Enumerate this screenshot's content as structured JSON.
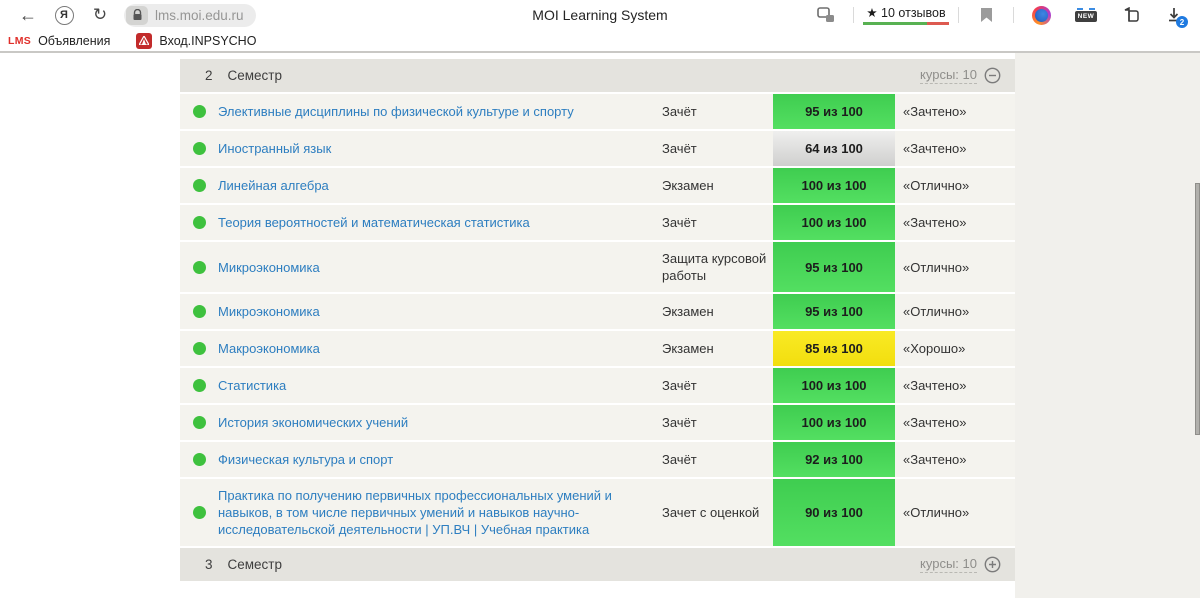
{
  "browser": {
    "url": "lms.moi.edu.ru",
    "page_title": "MOI Learning System",
    "menu_letter": "Я",
    "reviews_label": "★ 10 отзывов",
    "new_badge_label": "NEW",
    "download_badge": "2",
    "bookmarks": {
      "lms_logo": "LMS",
      "announcements": "Объявления",
      "inpsycho": "Вход.INPSYCHO"
    }
  },
  "table": {
    "header": {
      "number": "2",
      "label": "Семестр",
      "courses": "курсы: 10"
    },
    "footer": {
      "number": "3",
      "label": "Семестр",
      "courses": "курсы: 10"
    },
    "rows": [
      {
        "name": "Элективные дисциплины по физической культуре и спорту",
        "type": "Зачёт",
        "score": "95 из 100",
        "badge": "green",
        "grade": "«Зачтено»"
      },
      {
        "name": "Иностранный язык",
        "type": "Зачёт",
        "score": "64 из 100",
        "badge": "gray",
        "grade": "«Зачтено»"
      },
      {
        "name": "Линейная алгебра",
        "type": "Экзамен",
        "score": "100 из 100",
        "badge": "green",
        "grade": "«Отлично»"
      },
      {
        "name": "Теория вероятностей и математическая статистика",
        "type": "Зачёт",
        "score": "100 из 100",
        "badge": "green",
        "grade": "«Зачтено»"
      },
      {
        "name": "Микроэкономика",
        "type": "Защита курсовой работы",
        "score": "95 из 100",
        "badge": "green",
        "grade": "«Отлично»"
      },
      {
        "name": "Микроэкономика",
        "type": "Экзамен",
        "score": "95 из 100",
        "badge": "green",
        "grade": "«Отлично»"
      },
      {
        "name": "Макроэкономика",
        "type": "Экзамен",
        "score": "85 из 100",
        "badge": "yellow",
        "grade": "«Хорошо»"
      },
      {
        "name": "Статистика",
        "type": "Зачёт",
        "score": "100 из 100",
        "badge": "green",
        "grade": "«Зачтено»"
      },
      {
        "name": "История экономических учений",
        "type": "Зачёт",
        "score": "100 из 100",
        "badge": "green",
        "grade": "«Зачтено»"
      },
      {
        "name": "Физическая культура и спорт",
        "type": "Зачёт",
        "score": "92 из 100",
        "badge": "green",
        "grade": "«Зачтено»"
      },
      {
        "name": "Практика по получению первичных профессиональных умений и навыков, в том числе первичных умений и навыков научно-исследовательской деятельности | УП.ВЧ | Учебная практика",
        "type": "Зачет с оценкой",
        "score": "90 из 100",
        "badge": "green",
        "grade": "«Отлично»"
      }
    ]
  },
  "colors": {
    "badge_green": "#47d455",
    "badge_gray": "#dcdcdb",
    "badge_yellow": "#f6e41a",
    "status_dot": "#3ec13e",
    "link_blue": "#2d7ec0",
    "header_bar": "#e4e3de",
    "row_bg": "#f4f3ee",
    "reviews_green": "#58b152",
    "reviews_red": "#dd5a50"
  }
}
